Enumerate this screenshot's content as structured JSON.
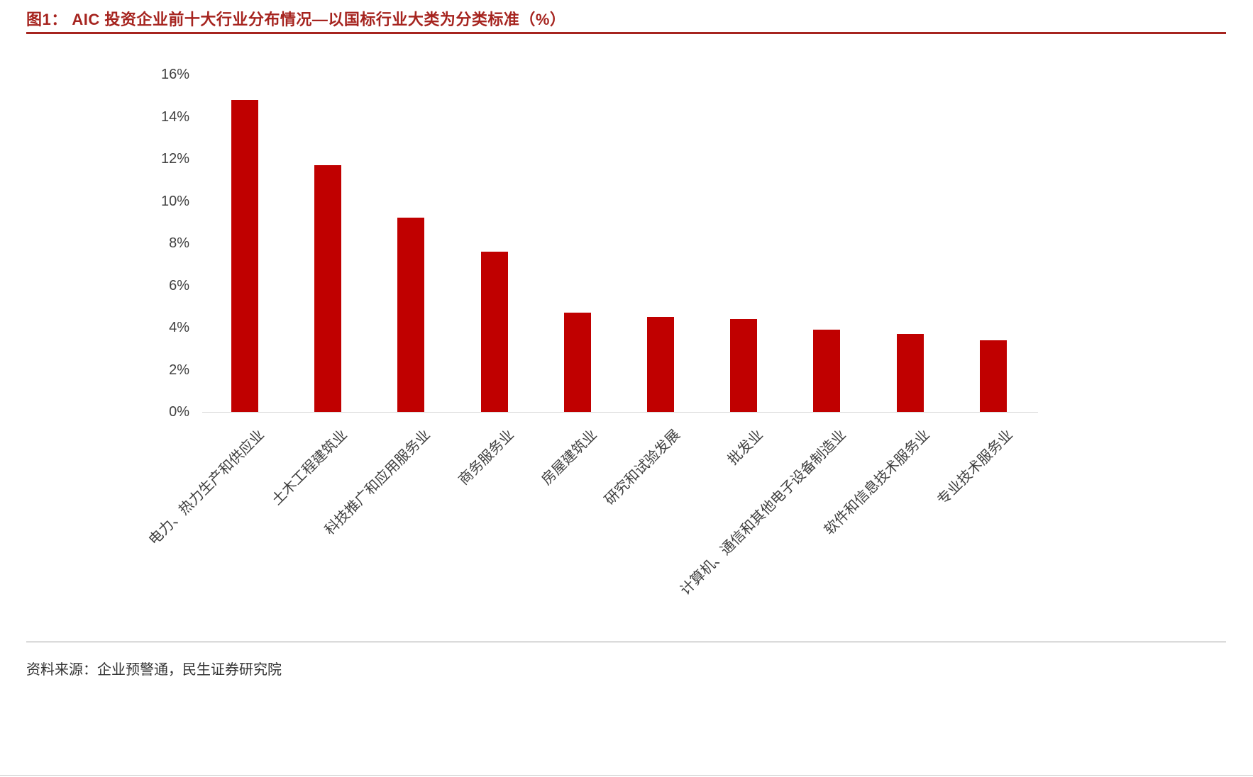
{
  "title": "图1： AIC 投资企业前十大行业分布情况—以国标行业大类为分类标准（%）",
  "source": "资料来源：企业预警通，民生证券研究院",
  "colors": {
    "bar": "#C00000",
    "title_accent": "#A6241F",
    "axis_line": "#D9D9D9",
    "tick_text": "#404040"
  },
  "chart_data": {
    "type": "bar",
    "title": "AIC 投资企业前十大行业分布情况—以国标行业大类为分类标准（%）",
    "categories": [
      "电力、热力生产和供应业",
      "土木工程建筑业",
      "科技推广和应用服务业",
      "商务服务业",
      "房屋建筑业",
      "研究和试验发展",
      "批发业",
      "计算机、通信和其他电子设备制造业",
      "软件和信息技术服务业",
      "专业技术服务业"
    ],
    "values": [
      14.8,
      11.7,
      9.2,
      7.6,
      4.7,
      4.5,
      4.4,
      3.9,
      3.7,
      3.4
    ],
    "xlabel": "",
    "ylabel": "",
    "ylim": [
      0,
      16
    ],
    "ytick_step": 2,
    "ytick_labels": [
      "0%",
      "2%",
      "4%",
      "6%",
      "8%",
      "10%",
      "12%",
      "14%",
      "16%"
    ],
    "grid": false,
    "legend": false,
    "bar_color": "#C00000"
  }
}
